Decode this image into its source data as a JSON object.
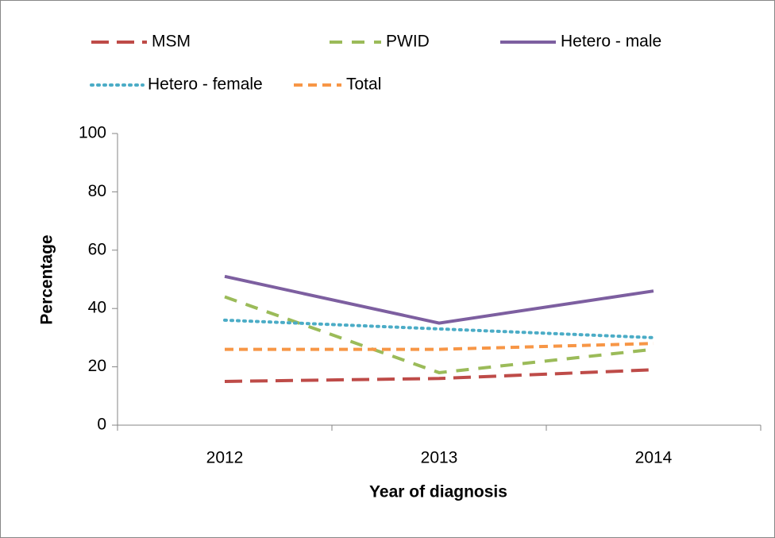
{
  "chart_data": {
    "type": "line",
    "x_label": "Year of diagnosis",
    "y_label": "Percentage",
    "categories": [
      "2012",
      "2013",
      "2014"
    ],
    "series": [
      {
        "name": "MSM",
        "color": "#be4b48",
        "dash": "22,10",
        "values": [
          15,
          16,
          19
        ]
      },
      {
        "name": "PWID",
        "color": "#9bbb59",
        "dash": "16,12",
        "values": [
          44,
          18,
          26
        ]
      },
      {
        "name": "Hetero - male",
        "color": "#7d5fa0",
        "dash": "none",
        "values": [
          51,
          35,
          46
        ]
      },
      {
        "name": "Hetero - female",
        "color": "#4bacc6",
        "dash": "2,6",
        "values": [
          36,
          33,
          30
        ]
      },
      {
        "name": "Total",
        "color": "#f79646",
        "dash": "11,7",
        "values": [
          26,
          26,
          28
        ]
      }
    ],
    "ylim": [
      0,
      100
    ],
    "yticks": [
      0,
      20,
      40,
      60,
      80,
      100
    ],
    "grid": false,
    "legend": "top"
  }
}
